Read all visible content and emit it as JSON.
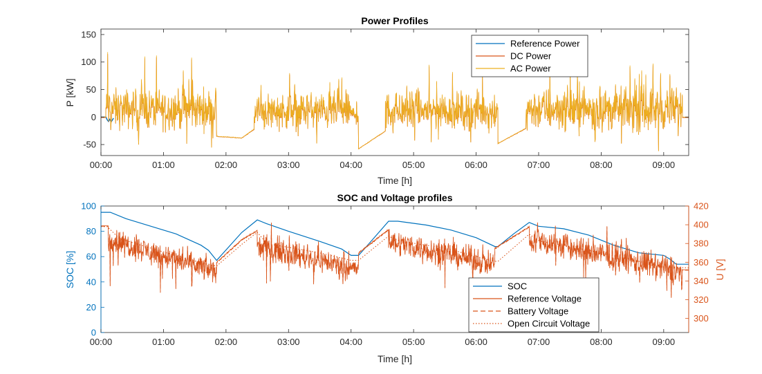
{
  "chart_data": [
    {
      "type": "line",
      "title": "Power Profiles",
      "xlabel": "Time [h]",
      "ylabel": "P [kW]",
      "xlim": [
        0,
        9.4
      ],
      "ylim": [
        -70,
        160
      ],
      "x_ticks": [
        0,
        1,
        2,
        3,
        4,
        5,
        6,
        7,
        8,
        9
      ],
      "x_tick_labels": [
        "00:00",
        "01:00",
        "02:00",
        "03:00",
        "04:00",
        "05:00",
        "06:00",
        "07:00",
        "08:00",
        "09:00"
      ],
      "y_ticks": [
        -50,
        0,
        50,
        100,
        150
      ],
      "y_tick_labels": [
        "-50",
        "0",
        "50",
        "100",
        "150"
      ],
      "grid": false,
      "legend_position": "top-right",
      "legend": [
        "Reference Power",
        "DC Power",
        "AC Power"
      ],
      "colors": {
        "Reference Power": "#0072BD",
        "DC Power": "#D95319",
        "AC Power": "#EDB120"
      },
      "segments": [
        {
          "from": 0.0,
          "to": 0.08,
          "mode": "flat",
          "value": 0
        },
        {
          "from": 0.08,
          "to": 1.85,
          "mode": "noisy",
          "mean": 15,
          "spread": 22
        },
        {
          "from": 1.85,
          "to": 2.25,
          "mode": "ramp",
          "start": -35,
          "end": -38
        },
        {
          "from": 2.25,
          "to": 2.45,
          "mode": "ramp",
          "start": -38,
          "end": -22
        },
        {
          "from": 2.45,
          "to": 4.0,
          "mode": "noisy",
          "mean": 12,
          "spread": 20
        },
        {
          "from": 4.0,
          "to": 4.12,
          "mode": "noisy",
          "mean": 5,
          "spread": 10
        },
        {
          "from": 4.12,
          "to": 4.55,
          "mode": "ramp",
          "start": -58,
          "end": -25
        },
        {
          "from": 4.55,
          "to": 6.35,
          "mode": "noisy",
          "mean": 12,
          "spread": 20
        },
        {
          "from": 6.35,
          "to": 6.8,
          "mode": "ramp",
          "start": -48,
          "end": -20
        },
        {
          "from": 6.8,
          "to": 9.3,
          "mode": "noisy",
          "mean": 15,
          "spread": 23
        },
        {
          "from": 9.3,
          "to": 9.4,
          "mode": "flat",
          "value": 0
        }
      ],
      "spikes": [
        {
          "x": 0.11,
          "y": 118
        },
        {
          "x": 0.7,
          "y": 110
        },
        {
          "x": 1.45,
          "y": 108
        },
        {
          "x": 1.32,
          "y": 85
        },
        {
          "x": 3.1,
          "y": 60
        },
        {
          "x": 3.85,
          "y": 72
        },
        {
          "x": 5.25,
          "y": 95
        },
        {
          "x": 5.62,
          "y": 82
        },
        {
          "x": 6.1,
          "y": 75
        },
        {
          "x": 7.18,
          "y": 80
        },
        {
          "x": 7.65,
          "y": 65
        },
        {
          "x": 8.65,
          "y": 85
        },
        {
          "x": 8.95,
          "y": 80
        },
        {
          "x": 9.1,
          "y": 78
        },
        {
          "x": 8.92,
          "y": -62
        },
        {
          "x": 0.6,
          "y": -50
        },
        {
          "x": 3.45,
          "y": -48
        },
        {
          "x": 7.9,
          "y": -45
        }
      ]
    },
    {
      "type": "line",
      "title": "SOC and Voltage profiles",
      "xlabel": "Time [h]",
      "ylabel": "SOC [%]",
      "ylabel_right": "U [V]",
      "xlim": [
        0,
        9.4
      ],
      "ylim": [
        0,
        100
      ],
      "ylim_right": [
        285,
        420
      ],
      "x_ticks": [
        0,
        1,
        2,
        3,
        4,
        5,
        6,
        7,
        8,
        9
      ],
      "x_tick_labels": [
        "00:00",
        "01:00",
        "02:00",
        "03:00",
        "04:00",
        "05:00",
        "06:00",
        "07:00",
        "08:00",
        "09:00"
      ],
      "y_ticks": [
        0,
        20,
        40,
        60,
        80,
        100
      ],
      "y_tick_labels": [
        "0",
        "20",
        "40",
        "60",
        "80",
        "100"
      ],
      "y_ticks_right": [
        300,
        320,
        340,
        360,
        380,
        400,
        420
      ],
      "y_tick_labels_right": [
        "300",
        "320",
        "340",
        "360",
        "380",
        "400",
        "420"
      ],
      "grid": false,
      "legend_position": "bottom-right",
      "legend": [
        "SOC",
        "Reference Voltage",
        "Battery Voltage",
        "Open Circuit Voltage"
      ],
      "colors": {
        "SOC": "#0072BD",
        "Reference Voltage": "#D95319",
        "Battery Voltage": "#D95319",
        "Open Circuit Voltage": "#D95319",
        "left_axis": "#0072BD",
        "right_axis": "#D95319"
      },
      "soc": {
        "x": [
          0.0,
          0.15,
          0.4,
          0.8,
          1.2,
          1.6,
          1.72,
          1.85,
          2.25,
          2.5,
          2.65,
          3.0,
          3.5,
          3.85,
          4.0,
          4.12,
          4.3,
          4.6,
          4.75,
          5.2,
          5.6,
          6.0,
          6.3,
          6.35,
          6.6,
          6.85,
          7.0,
          7.4,
          7.8,
          8.2,
          8.6,
          9.0,
          9.1,
          9.2,
          9.4
        ],
        "y": [
          95,
          95,
          90,
          84,
          78,
          69,
          65,
          57,
          79,
          89,
          86,
          80,
          72,
          66,
          61,
          61,
          71,
          88,
          88,
          85,
          81,
          75,
          68,
          68,
          78,
          87,
          84,
          82,
          77,
          69,
          63,
          61,
          58,
          54,
          54
        ]
      },
      "ocv": {
        "x": [
          0.0,
          0.1,
          0.3,
          0.8,
          1.3,
          1.75,
          1.85,
          2.25,
          2.5,
          2.65,
          3.5,
          4.0,
          4.12,
          4.6,
          4.75,
          5.5,
          6.3,
          6.35,
          6.85,
          7.0,
          8.0,
          9.0,
          9.4
        ],
        "y": [
          398,
          398,
          385,
          375,
          365,
          357,
          356,
          379,
          392,
          380,
          370,
          362,
          362,
          388,
          383,
          375,
          361,
          361,
          390,
          383,
          370,
          355,
          354
        ]
      },
      "vref_segments": [
        {
          "from": 0.0,
          "to": 0.12,
          "mode": "flat",
          "value": 399
        },
        {
          "from": 0.12,
          "to": 1.85,
          "mode": "noisy",
          "start": 385,
          "end": 350,
          "spread": 8
        },
        {
          "from": 1.85,
          "to": 2.25,
          "mode": "ramp",
          "start": 360,
          "end": 384
        },
        {
          "from": 2.25,
          "to": 2.5,
          "mode": "ramp",
          "start": 384,
          "end": 394
        },
        {
          "from": 2.5,
          "to": 4.0,
          "mode": "noisy",
          "start": 378,
          "end": 355,
          "spread": 8
        },
        {
          "from": 4.0,
          "to": 4.12,
          "mode": "noisy",
          "start": 355,
          "end": 352,
          "spread": 6
        },
        {
          "from": 4.12,
          "to": 4.6,
          "mode": "ramp",
          "start": 370,
          "end": 395
        },
        {
          "from": 4.6,
          "to": 6.3,
          "mode": "noisy",
          "start": 383,
          "end": 358,
          "spread": 8
        },
        {
          "from": 6.3,
          "to": 6.85,
          "mode": "ramp",
          "start": 375,
          "end": 398
        },
        {
          "from": 6.85,
          "to": 9.3,
          "mode": "noisy",
          "start": 385,
          "end": 350,
          "spread": 9
        },
        {
          "from": 9.3,
          "to": 9.4,
          "mode": "flat",
          "value": 352
        }
      ],
      "vref_spikes": [
        {
          "x": 0.15,
          "y": 335
        },
        {
          "x": 0.95,
          "y": 328
        },
        {
          "x": 1.2,
          "y": 332
        },
        {
          "x": 1.45,
          "y": 335
        },
        {
          "x": 2.65,
          "y": 338
        },
        {
          "x": 3.4,
          "y": 337
        },
        {
          "x": 5.5,
          "y": 333
        },
        {
          "x": 5.95,
          "y": 336
        },
        {
          "x": 7.75,
          "y": 337
        },
        {
          "x": 9.05,
          "y": 330
        },
        {
          "x": 8.4,
          "y": 386
        },
        {
          "x": 9.25,
          "y": 340
        }
      ]
    }
  ]
}
